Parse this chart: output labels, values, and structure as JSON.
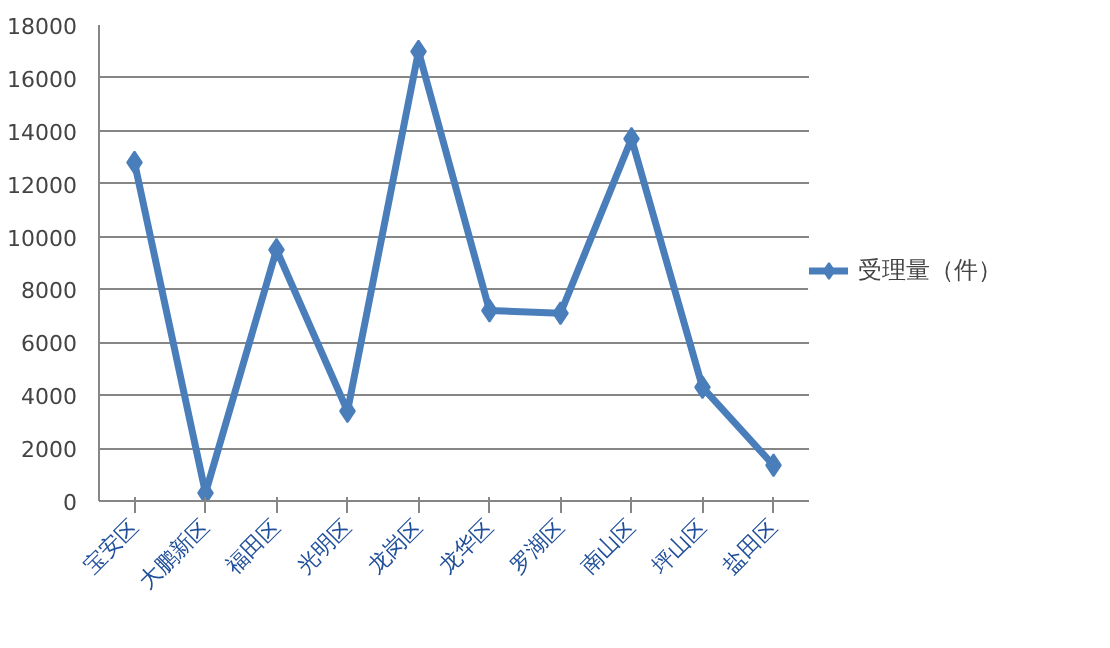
{
  "chart_data": {
    "type": "line",
    "categories": [
      "宝安区",
      "大鹏新区",
      "福田区",
      "光明区",
      "龙岗区",
      "龙华区",
      "罗湖区",
      "南山区",
      "坪山区",
      "盐田区"
    ],
    "series": [
      {
        "name": "受理量（件）",
        "color": "#4a7ebb",
        "values": [
          12800,
          300,
          9500,
          3400,
          17000,
          7200,
          7100,
          13700,
          4300,
          1350
        ]
      }
    ],
    "ylim": [
      0,
      18000
    ],
    "yticks": [
      0,
      2000,
      4000,
      6000,
      8000,
      10000,
      12000,
      14000,
      16000,
      18000
    ],
    "grid": "y",
    "legend": "right",
    "marker": "diamond",
    "line_style": "solid"
  }
}
